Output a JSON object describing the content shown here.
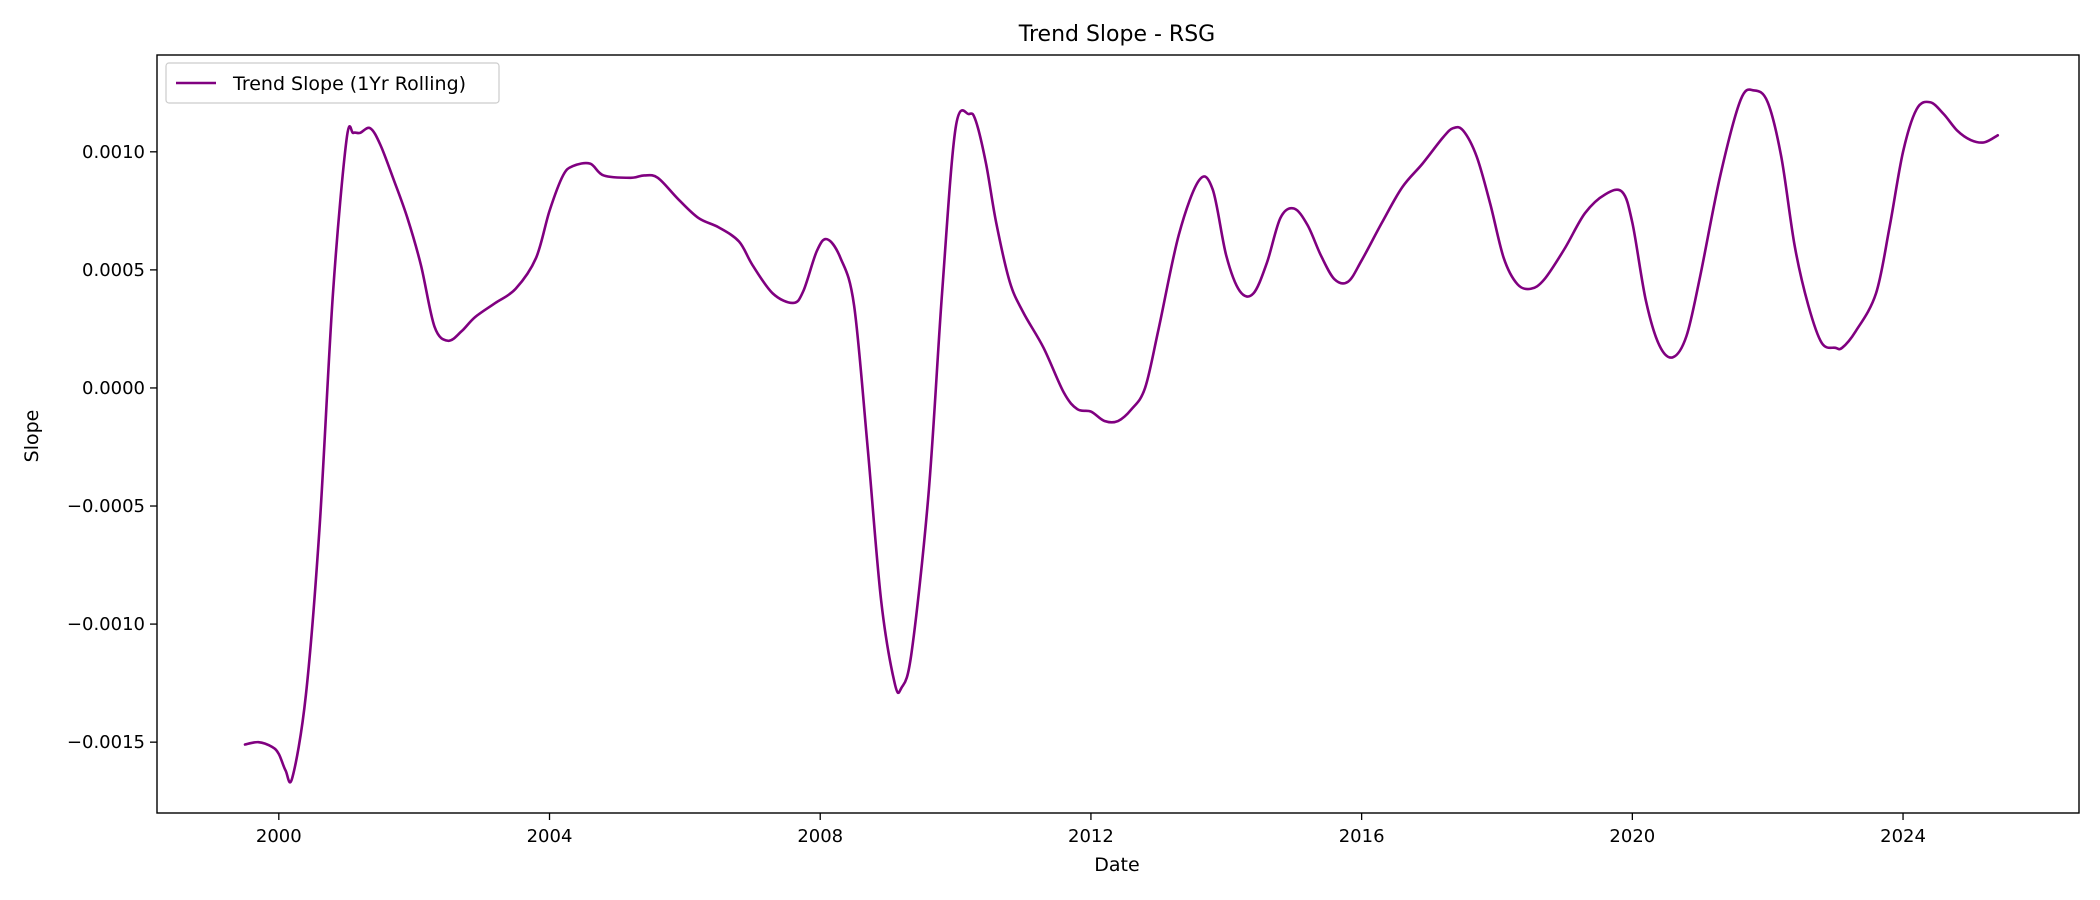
{
  "chart_data": {
    "type": "line",
    "title": "Trend Slope - RSG",
    "xlabel": "Date",
    "ylabel": "Slope",
    "xlim": [
      1998.2,
      2026.6
    ],
    "ylim": [
      -0.0018,
      0.00141
    ],
    "x_ticks": [
      2000,
      2004,
      2008,
      2012,
      2016,
      2020,
      2024
    ],
    "x_tick_labels": [
      "2000",
      "2004",
      "2008",
      "2012",
      "2016",
      "2020",
      "2024"
    ],
    "y_ticks": [
      -0.0015,
      -0.001,
      -0.0005,
      0.0,
      0.0005,
      0.001
    ],
    "y_tick_labels": [
      "−0.0015",
      "−0.0010",
      "−0.0005",
      "0.0000",
      "0.0005",
      "0.0010"
    ],
    "grid": false,
    "legend": {
      "position": "upper left"
    },
    "series": [
      {
        "name": "Trend Slope (1Yr Rolling)",
        "color": "#800080",
        "x": [
          1999.5,
          1999.7,
          1999.9,
          2000.0,
          2000.1,
          2000.2,
          2000.4,
          2000.6,
          2000.8,
          2001.0,
          2001.1,
          2001.2,
          2001.35,
          2001.5,
          2001.7,
          2001.9,
          2002.1,
          2002.3,
          2002.5,
          2002.7,
          2002.9,
          2003.2,
          2003.5,
          2003.8,
          2004.0,
          2004.2,
          2004.35,
          2004.6,
          2004.8,
          2005.2,
          2005.4,
          2005.6,
          2005.9,
          2006.2,
          2006.5,
          2006.8,
          2007.0,
          2007.3,
          2007.6,
          2007.75,
          2007.95,
          2008.1,
          2008.3,
          2008.5,
          2008.7,
          2008.9,
          2009.1,
          2009.2,
          2009.35,
          2009.6,
          2009.8,
          2010.0,
          2010.2,
          2010.3,
          2010.45,
          2010.6,
          2010.8,
          2011.0,
          2011.3,
          2011.6,
          2011.8,
          2012.0,
          2012.2,
          2012.4,
          2012.6,
          2012.8,
          2013.0,
          2013.3,
          2013.6,
          2013.8,
          2014.0,
          2014.2,
          2014.4,
          2014.6,
          2014.8,
          2015.0,
          2015.2,
          2015.4,
          2015.6,
          2015.8,
          2016.0,
          2016.3,
          2016.6,
          2016.9,
          2017.2,
          2017.35,
          2017.5,
          2017.7,
          2017.9,
          2018.1,
          2018.3,
          2018.5,
          2018.7,
          2019.0,
          2019.3,
          2019.6,
          2019.85,
          2020.0,
          2020.2,
          2020.4,
          2020.6,
          2020.8,
          2021.0,
          2021.3,
          2021.6,
          2021.8,
          2022.0,
          2022.2,
          2022.4,
          2022.6,
          2022.8,
          2023.0,
          2023.1,
          2023.3,
          2023.6,
          2023.8,
          2024.0,
          2024.2,
          2024.4,
          2024.6,
          2024.8,
          2025.0,
          2025.2,
          2025.4
        ],
        "y": [
          -0.00151,
          -0.0015,
          -0.00152,
          -0.00155,
          -0.00162,
          -0.00165,
          -0.0013,
          -0.0006,
          0.0004,
          0.00105,
          0.00108,
          0.00108,
          0.0011,
          0.00103,
          0.00088,
          0.00072,
          0.00052,
          0.00026,
          0.0002,
          0.00024,
          0.0003,
          0.00036,
          0.00042,
          0.00055,
          0.00075,
          0.0009,
          0.00094,
          0.00095,
          0.0009,
          0.00089,
          0.0009,
          0.00089,
          0.0008,
          0.00072,
          0.00068,
          0.00062,
          0.00052,
          0.0004,
          0.00036,
          0.00041,
          0.00058,
          0.00063,
          0.00055,
          0.00035,
          -0.00025,
          -0.0009,
          -0.00125,
          -0.00127,
          -0.00112,
          -0.00045,
          0.0004,
          0.0011,
          0.00116,
          0.00113,
          0.00095,
          0.0007,
          0.00045,
          0.00032,
          0.00017,
          -2e-05,
          -9e-05,
          -0.0001,
          -0.00014,
          -0.00014,
          -9e-05,
          0.0,
          0.00025,
          0.00065,
          0.00088,
          0.00084,
          0.00056,
          0.00041,
          0.0004,
          0.00053,
          0.00072,
          0.00076,
          0.00069,
          0.00056,
          0.00046,
          0.00045,
          0.00054,
          0.0007,
          0.00085,
          0.00095,
          0.00106,
          0.0011,
          0.00109,
          0.00098,
          0.00078,
          0.00055,
          0.00044,
          0.00042,
          0.00046,
          0.00059,
          0.00074,
          0.00082,
          0.00083,
          0.0007,
          0.00037,
          0.00018,
          0.00013,
          0.00022,
          0.00047,
          0.0009,
          0.00122,
          0.00126,
          0.00121,
          0.00098,
          0.0006,
          0.00035,
          0.00019,
          0.00017,
          0.00017,
          0.00024,
          0.0004,
          0.00068,
          0.001,
          0.00118,
          0.00121,
          0.00116,
          0.00109,
          0.00105,
          0.00104,
          0.00107
        ]
      }
    ]
  }
}
